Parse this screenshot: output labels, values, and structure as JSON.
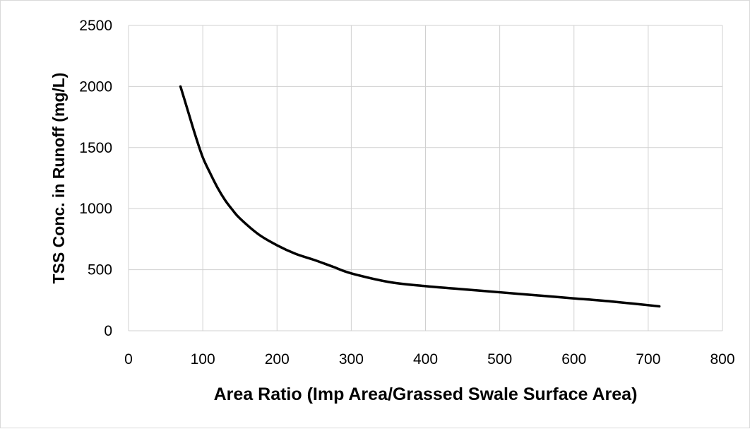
{
  "chart_data": {
    "type": "line",
    "title": "",
    "xlabel": "Area Ratio (Imp Area/Grassed Swale Surface Area)",
    "ylabel": "TSS Conc. in Runoff (mg/L)",
    "xlim": [
      0,
      800
    ],
    "ylim": [
      0,
      2500
    ],
    "x_ticks": [
      0,
      100,
      200,
      300,
      400,
      500,
      600,
      700,
      800
    ],
    "y_ticks": [
      0,
      500,
      1000,
      1500,
      2000,
      2500
    ],
    "grid": true,
    "legend": "none",
    "series": [
      {
        "color": "#000000",
        "x": [
          70,
          80,
          90,
          100,
          110,
          120,
          130,
          140,
          150,
          175,
          200,
          225,
          250,
          275,
          300,
          350,
          400,
          450,
          500,
          550,
          600,
          650,
          715
        ],
        "y": [
          2000,
          1800,
          1600,
          1420,
          1290,
          1170,
          1070,
          990,
          920,
          790,
          700,
          630,
          580,
          525,
          470,
          400,
          365,
          340,
          315,
          290,
          265,
          240,
          200
        ]
      }
    ]
  }
}
